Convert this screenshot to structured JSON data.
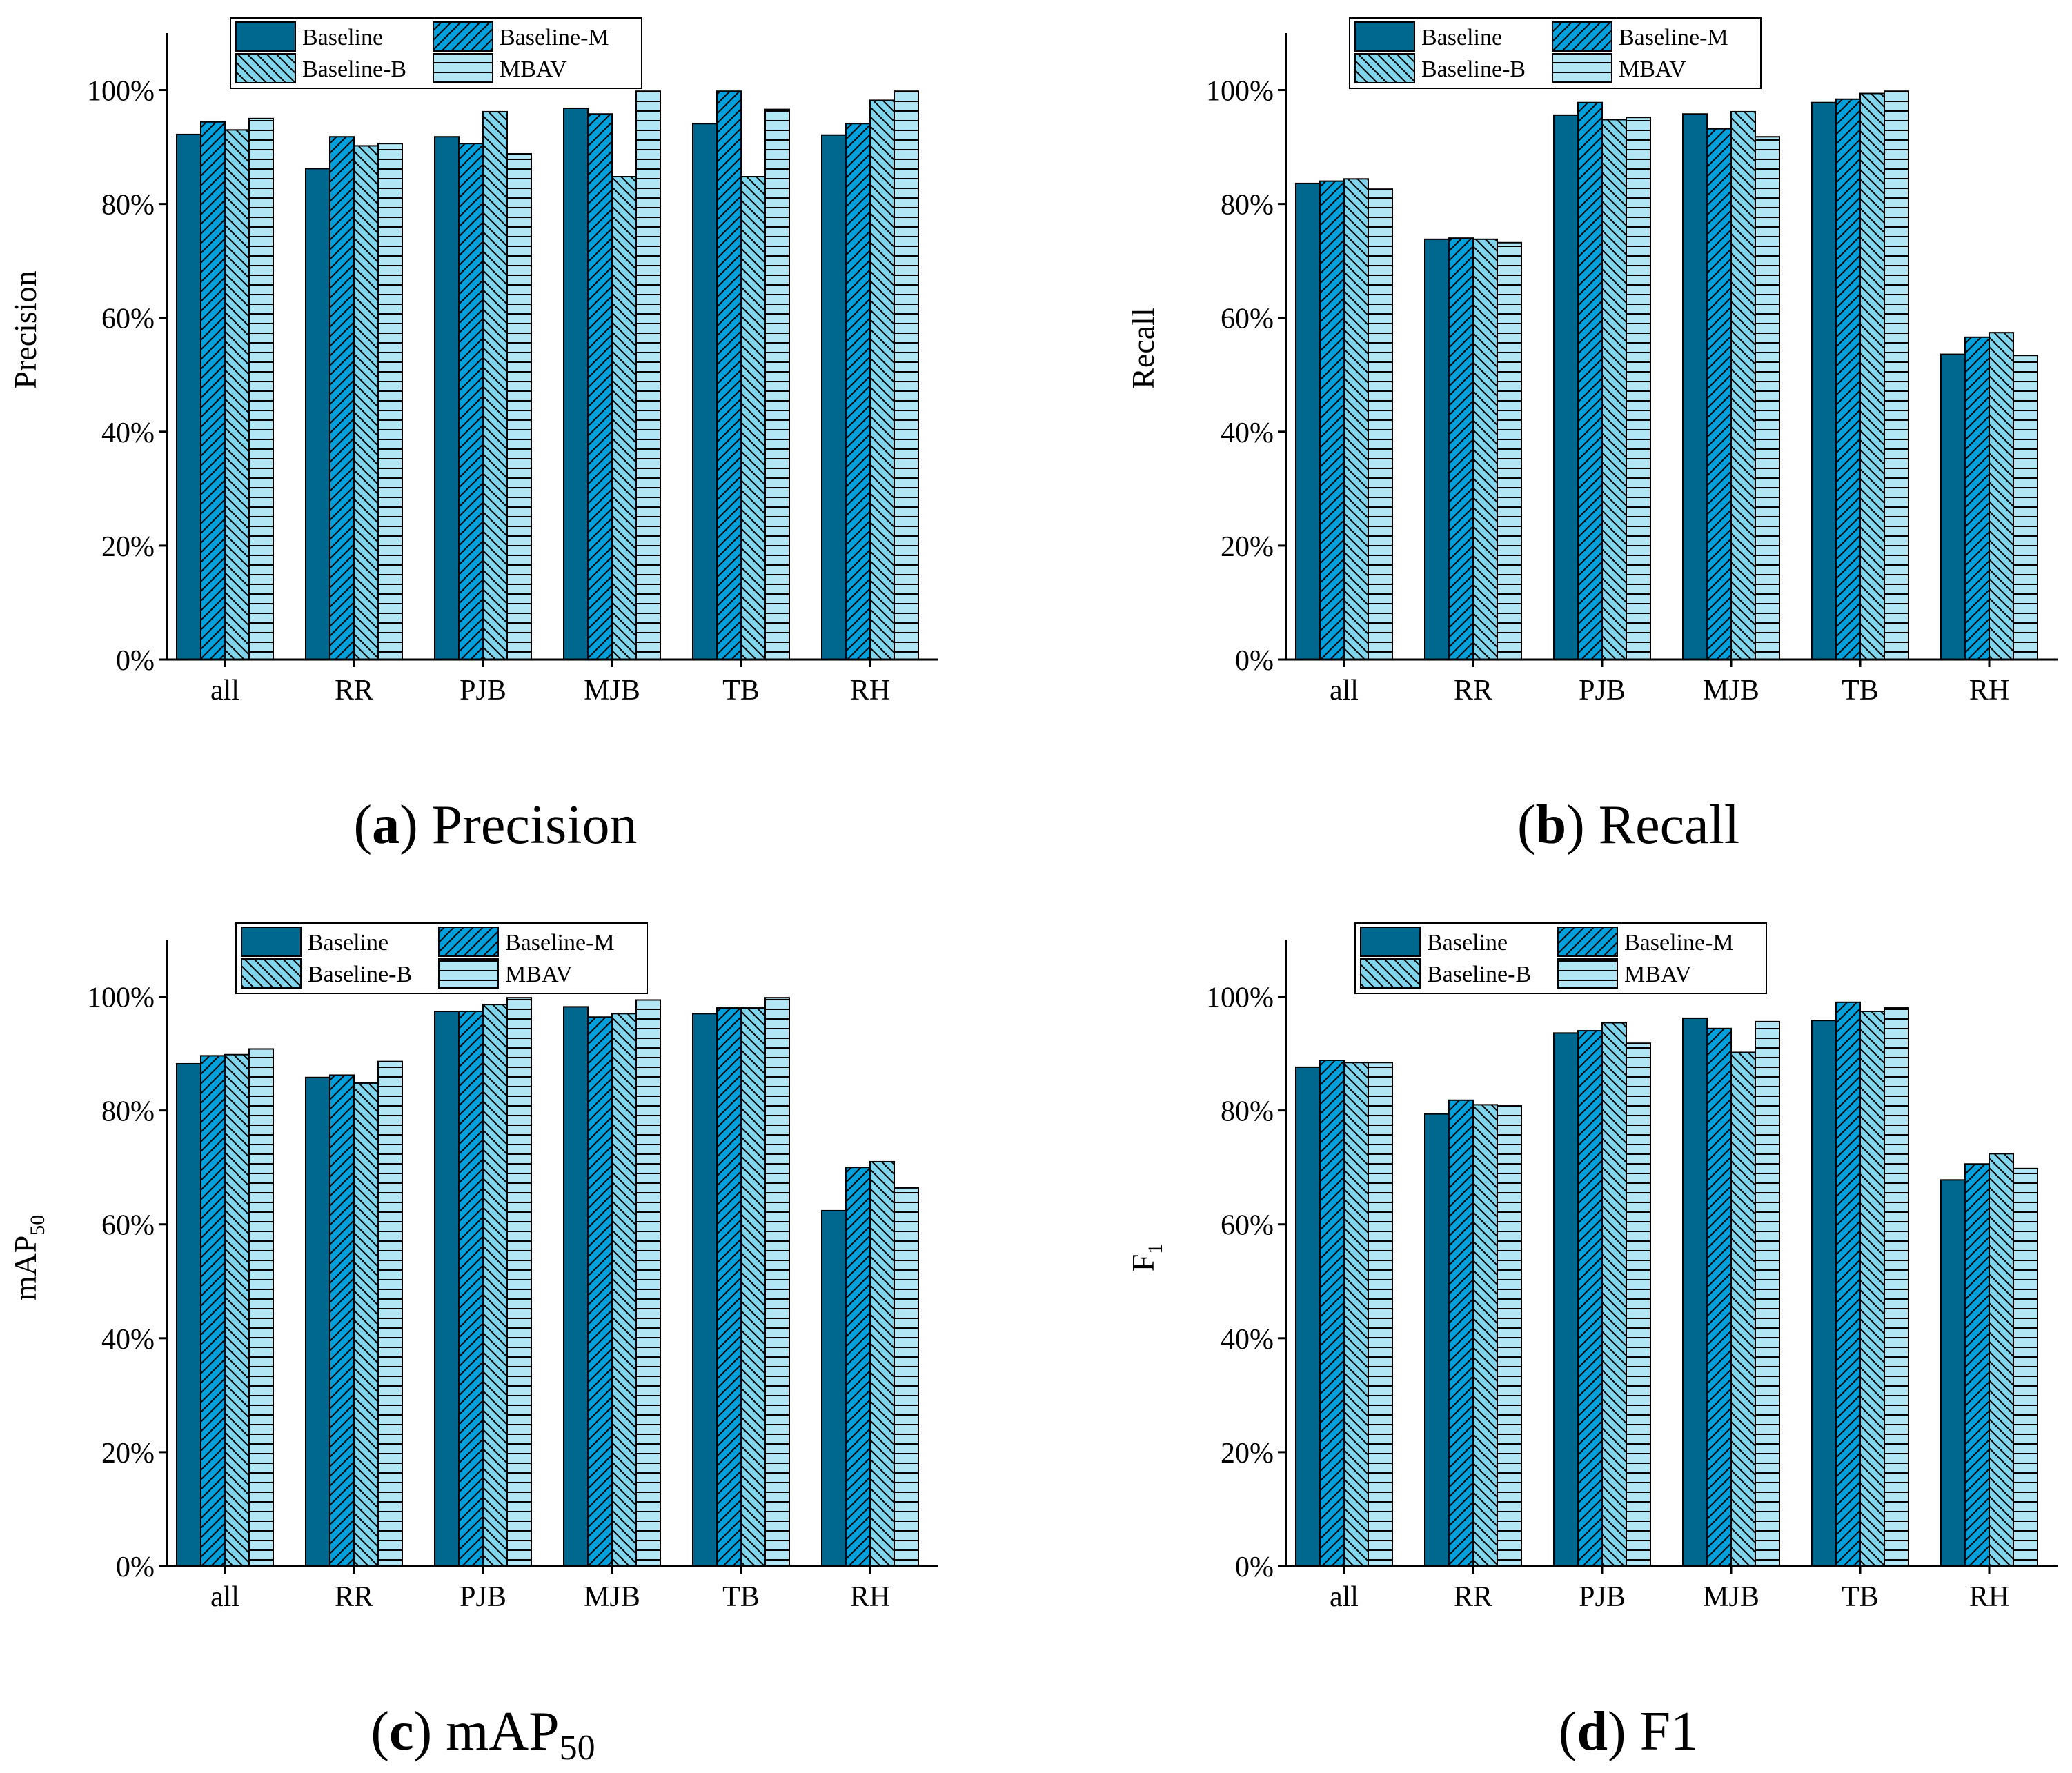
{
  "colors": {
    "baseline": "#00678F",
    "baseline_m": "#00A0DC",
    "baseline_b": "#80D4EC",
    "mbav": "#B2E6F4",
    "axis": "#000000"
  },
  "chart_data": [
    {
      "type": "bar",
      "panel_tag": "a",
      "caption": "Precision",
      "ylabel": "Precision",
      "ylim": [
        0,
        1.1
      ],
      "yticks": [
        "0%",
        "20%",
        "40%",
        "60%",
        "80%",
        "100%"
      ],
      "categories": [
        "all",
        "RR",
        "PJB",
        "MJB",
        "TB",
        "RH"
      ],
      "legend": [
        "Baseline",
        "Baseline-M",
        "Baseline-B",
        "MBAV"
      ],
      "series": [
        {
          "name": "Baseline",
          "values": [
            0.922,
            0.862,
            0.918,
            0.968,
            0.941,
            0.921
          ]
        },
        {
          "name": "Baseline-M",
          "values": [
            0.944,
            0.918,
            0.906,
            0.958,
            0.998,
            0.941
          ]
        },
        {
          "name": "Baseline-B",
          "values": [
            0.93,
            0.902,
            0.962,
            0.848,
            0.848,
            0.982
          ]
        },
        {
          "name": "MBAV",
          "values": [
            0.95,
            0.906,
            0.888,
            0.998,
            0.966,
            0.998
          ]
        }
      ]
    },
    {
      "type": "bar",
      "panel_tag": "b",
      "caption": "Recall",
      "ylabel": "Recall",
      "ylim": [
        0,
        1.1
      ],
      "yticks": [
        "0%",
        "20%",
        "40%",
        "60%",
        "80%",
        "100%"
      ],
      "categories": [
        "all",
        "RR",
        "PJB",
        "MJB",
        "TB",
        "RH"
      ],
      "legend": [
        "Baseline",
        "Baseline-M",
        "Baseline-B",
        "MBAV"
      ],
      "series": [
        {
          "name": "Baseline",
          "values": [
            0.836,
            0.738,
            0.956,
            0.958,
            0.978,
            0.536
          ]
        },
        {
          "name": "Baseline-M",
          "values": [
            0.84,
            0.74,
            0.978,
            0.932,
            0.984,
            0.566
          ]
        },
        {
          "name": "Baseline-B",
          "values": [
            0.844,
            0.738,
            0.948,
            0.962,
            0.994,
            0.574
          ]
        },
        {
          "name": "MBAV",
          "values": [
            0.826,
            0.732,
            0.952,
            0.918,
            0.998,
            0.534
          ]
        }
      ]
    },
    {
      "type": "bar",
      "panel_tag": "c",
      "caption": "mAP",
      "caption_sub": "50",
      "ylabel": "mAP",
      "ylabel_sub": "50",
      "ylim": [
        0,
        1.1
      ],
      "yticks": [
        "0%",
        "20%",
        "40%",
        "60%",
        "80%",
        "100%"
      ],
      "categories": [
        "all",
        "RR",
        "PJB",
        "MJB",
        "TB",
        "RH"
      ],
      "legend": [
        "Baseline",
        "Baseline-M",
        "Baseline-B",
        "MBAV"
      ],
      "series": [
        {
          "name": "Baseline",
          "values": [
            0.882,
            0.858,
            0.974,
            0.982,
            0.97,
            0.624
          ]
        },
        {
          "name": "Baseline-M",
          "values": [
            0.896,
            0.862,
            0.974,
            0.964,
            0.98,
            0.7
          ]
        },
        {
          "name": "Baseline-B",
          "values": [
            0.898,
            0.848,
            0.986,
            0.97,
            0.98,
            0.71
          ]
        },
        {
          "name": "MBAV",
          "values": [
            0.908,
            0.886,
            0.998,
            0.994,
            0.998,
            0.664
          ]
        }
      ]
    },
    {
      "type": "bar",
      "panel_tag": "d",
      "caption": "F1",
      "ylabel": "F",
      "ylabel_sub": "1",
      "ylim": [
        0,
        1.1
      ],
      "yticks": [
        "0%",
        "20%",
        "40%",
        "60%",
        "80%",
        "100%"
      ],
      "categories": [
        "all",
        "RR",
        "PJB",
        "MJB",
        "TB",
        "RH"
      ],
      "legend": [
        "Baseline",
        "Baseline-M",
        "Baseline-B",
        "MBAV"
      ],
      "series": [
        {
          "name": "Baseline",
          "values": [
            0.876,
            0.794,
            0.936,
            0.962,
            0.958,
            0.678
          ]
        },
        {
          "name": "Baseline-M",
          "values": [
            0.888,
            0.818,
            0.94,
            0.944,
            0.99,
            0.706
          ]
        },
        {
          "name": "Baseline-B",
          "values": [
            0.884,
            0.81,
            0.954,
            0.902,
            0.974,
            0.724
          ]
        },
        {
          "name": "MBAV",
          "values": [
            0.884,
            0.808,
            0.918,
            0.956,
            0.98,
            0.698
          ]
        }
      ]
    }
  ]
}
